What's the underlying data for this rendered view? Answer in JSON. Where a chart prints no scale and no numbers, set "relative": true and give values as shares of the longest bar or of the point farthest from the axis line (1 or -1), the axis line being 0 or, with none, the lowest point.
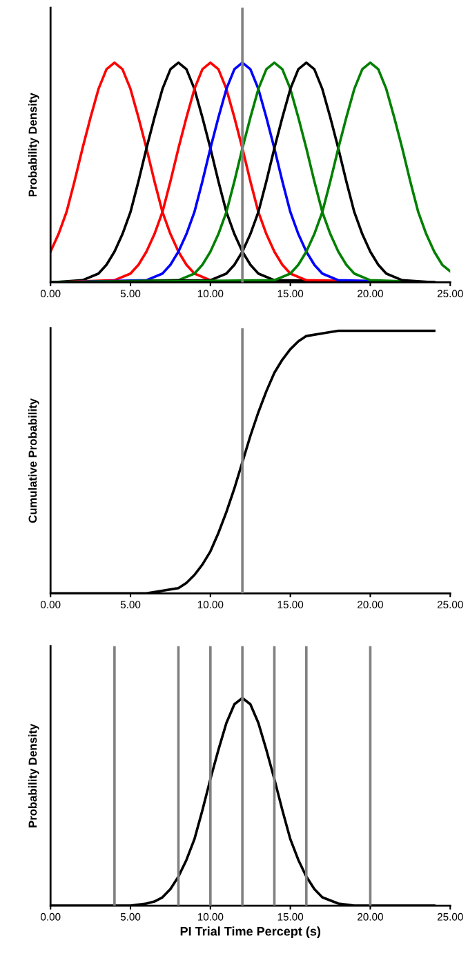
{
  "chart_data": [
    {
      "type": "line",
      "ylabel": "Probability Density",
      "relative": true,
      "tick_labels": "x",
      "grid": false,
      "legend": false,
      "marker": "none",
      "line_style": "solid",
      "xlim": [
        0,
        25
      ],
      "xticks": [
        {
          "value": 0,
          "label": "0.00"
        },
        {
          "value": 5,
          "label": "5.00"
        },
        {
          "value": 10,
          "label": "10.00"
        },
        {
          "value": 15,
          "label": "15.00"
        },
        {
          "value": 20,
          "label": "20.00"
        },
        {
          "value": 25,
          "label": "25.00"
        }
      ],
      "ref_lines": [
        {
          "axis": "x",
          "value": 12,
          "color": "#808080"
        }
      ],
      "series": [
        {
          "color": "#ff0000",
          "x": [
            0,
            0.5,
            1,
            1.5,
            2,
            2.5,
            3,
            3.5,
            4,
            4.5,
            5,
            5.5,
            6,
            6.5,
            7,
            7.5,
            8,
            8.5,
            9,
            10,
            11,
            24
          ],
          "values": [
            0.14,
            0.22,
            0.32,
            0.46,
            0.61,
            0.75,
            0.88,
            0.97,
            1,
            0.97,
            0.88,
            0.75,
            0.61,
            0.46,
            0.32,
            0.22,
            0.14,
            0.08,
            0.04,
            0.01,
            0,
            0
          ]
        },
        {
          "color": "#000000",
          "x": [
            0,
            2,
            3,
            3.5,
            4,
            4.5,
            5,
            5.5,
            6,
            6.5,
            7,
            7.5,
            8,
            8.5,
            9,
            9.5,
            10,
            10.5,
            11,
            11.5,
            12,
            12.5,
            13,
            14,
            24
          ],
          "values": [
            0,
            0.01,
            0.04,
            0.08,
            0.14,
            0.22,
            0.32,
            0.46,
            0.61,
            0.75,
            0.88,
            0.97,
            1,
            0.97,
            0.88,
            0.75,
            0.61,
            0.46,
            0.32,
            0.22,
            0.14,
            0.08,
            0.04,
            0.01,
            0
          ]
        },
        {
          "color": "#ff0000",
          "x": [
            0,
            4,
            5,
            5.5,
            6,
            6.5,
            7,
            7.5,
            8,
            8.5,
            9,
            9.5,
            10,
            10.5,
            11,
            11.5,
            12,
            12.5,
            13,
            13.5,
            14,
            14.5,
            15,
            16,
            24
          ],
          "values": [
            0,
            0.01,
            0.04,
            0.08,
            0.14,
            0.22,
            0.32,
            0.46,
            0.61,
            0.75,
            0.88,
            0.97,
            1,
            0.97,
            0.88,
            0.75,
            0.61,
            0.46,
            0.32,
            0.22,
            0.14,
            0.08,
            0.04,
            0.01,
            0
          ]
        },
        {
          "color": "#0000ff",
          "x": [
            0,
            6,
            7,
            7.5,
            8,
            8.5,
            9,
            9.5,
            10,
            10.5,
            11,
            11.5,
            12,
            12.5,
            13,
            13.5,
            14,
            14.5,
            15,
            15.5,
            16,
            16.5,
            17,
            18,
            24
          ],
          "values": [
            0,
            0.01,
            0.04,
            0.08,
            0.14,
            0.22,
            0.32,
            0.46,
            0.61,
            0.75,
            0.88,
            0.97,
            1,
            0.97,
            0.88,
            0.75,
            0.61,
            0.46,
            0.32,
            0.22,
            0.14,
            0.08,
            0.04,
            0.01,
            0
          ]
        },
        {
          "color": "#008000",
          "x": [
            0,
            8,
            9,
            9.5,
            10,
            10.5,
            11,
            11.5,
            12,
            12.5,
            13,
            13.5,
            14,
            14.5,
            15,
            15.5,
            16,
            16.5,
            17,
            17.5,
            18,
            18.5,
            19,
            20,
            24
          ],
          "values": [
            0,
            0.01,
            0.04,
            0.08,
            0.14,
            0.22,
            0.32,
            0.46,
            0.61,
            0.75,
            0.88,
            0.97,
            1,
            0.97,
            0.88,
            0.75,
            0.61,
            0.46,
            0.32,
            0.22,
            0.14,
            0.08,
            0.04,
            0.01,
            0
          ]
        },
        {
          "color": "#000000",
          "x": [
            0,
            10,
            11,
            11.5,
            12,
            12.5,
            13,
            13.5,
            14,
            14.5,
            15,
            15.5,
            16,
            16.5,
            17,
            17.5,
            18,
            18.5,
            19,
            19.5,
            20,
            20.5,
            21,
            22,
            24
          ],
          "values": [
            0,
            0.01,
            0.04,
            0.08,
            0.14,
            0.22,
            0.32,
            0.46,
            0.61,
            0.75,
            0.88,
            0.97,
            1,
            0.97,
            0.88,
            0.75,
            0.61,
            0.46,
            0.32,
            0.22,
            0.14,
            0.08,
            0.04,
            0.01,
            0
          ]
        },
        {
          "color": "#008000",
          "x": [
            0,
            14,
            15,
            15.5,
            16,
            16.5,
            17,
            17.5,
            18,
            18.5,
            19,
            19.5,
            20,
            20.5,
            21,
            21.5,
            22,
            22.5,
            23,
            23.5,
            24,
            24.5,
            25
          ],
          "values": [
            0,
            0.01,
            0.04,
            0.08,
            0.14,
            0.22,
            0.32,
            0.46,
            0.61,
            0.75,
            0.88,
            0.97,
            1,
            0.97,
            0.88,
            0.75,
            0.61,
            0.46,
            0.32,
            0.22,
            0.14,
            0.08,
            0.05
          ]
        }
      ]
    },
    {
      "type": "line",
      "ylabel": "Cumulative Probability",
      "relative": true,
      "tick_labels": "x",
      "grid": false,
      "legend": false,
      "marker": "none",
      "line_style": "solid",
      "xlim": [
        0,
        25
      ],
      "xticks": [
        {
          "value": 0,
          "label": "0.00"
        },
        {
          "value": 5,
          "label": "5.00"
        },
        {
          "value": 10,
          "label": "10.00"
        },
        {
          "value": 15,
          "label": "15.00"
        },
        {
          "value": 20,
          "label": "20.00"
        },
        {
          "value": 25,
          "label": "25.00"
        }
      ],
      "ref_lines": [
        {
          "axis": "x",
          "value": 12,
          "color": "#808080"
        }
      ],
      "series": [
        {
          "color": "#000000",
          "x": [
            0,
            4,
            6,
            7,
            8,
            8.5,
            9,
            9.5,
            10,
            10.5,
            11,
            11.5,
            12,
            12.5,
            13,
            13.5,
            14,
            14.5,
            15,
            15.5,
            16,
            17,
            18,
            20,
            24
          ],
          "values": [
            0,
            0,
            0,
            0.01,
            0.02,
            0.04,
            0.07,
            0.11,
            0.16,
            0.23,
            0.31,
            0.4,
            0.5,
            0.6,
            0.69,
            0.77,
            0.84,
            0.89,
            0.93,
            0.96,
            0.98,
            0.99,
            1,
            1,
            1
          ]
        }
      ]
    },
    {
      "type": "line",
      "ylabel": "Probability Density",
      "xlabel": "PI Trial Time Percept (s)",
      "relative": true,
      "tick_labels": "x",
      "grid": false,
      "legend": false,
      "marker": "none",
      "line_style": "solid",
      "xlim": [
        0,
        25
      ],
      "xticks": [
        {
          "value": 0,
          "label": "0.00"
        },
        {
          "value": 5,
          "label": "5.00"
        },
        {
          "value": 10,
          "label": "10.00"
        },
        {
          "value": 15,
          "label": "15.00"
        },
        {
          "value": 20,
          "label": "20.00"
        },
        {
          "value": 25,
          "label": "25.00"
        }
      ],
      "ref_lines": [
        {
          "axis": "x",
          "value": 4,
          "color": "#808080"
        },
        {
          "axis": "x",
          "value": 8,
          "color": "#808080"
        },
        {
          "axis": "x",
          "value": 10,
          "color": "#808080"
        },
        {
          "axis": "x",
          "value": 12,
          "color": "#808080"
        },
        {
          "axis": "x",
          "value": 14,
          "color": "#808080"
        },
        {
          "axis": "x",
          "value": 16,
          "color": "#808080"
        },
        {
          "axis": "x",
          "value": 20,
          "color": "#808080"
        }
      ],
      "series": [
        {
          "color": "#000000",
          "x": [
            0,
            5,
            6,
            6.5,
            7,
            7.5,
            8,
            8.5,
            9,
            9.5,
            10,
            10.5,
            11,
            11.5,
            12,
            12.5,
            13,
            13.5,
            14,
            14.5,
            15,
            15.5,
            16,
            16.5,
            17,
            18,
            19,
            24
          ],
          "values": [
            0,
            0,
            0.01,
            0.02,
            0.04,
            0.08,
            0.14,
            0.22,
            0.32,
            0.46,
            0.61,
            0.75,
            0.88,
            0.97,
            1,
            0.97,
            0.88,
            0.75,
            0.61,
            0.46,
            0.32,
            0.22,
            0.14,
            0.08,
            0.04,
            0.01,
            0,
            0
          ]
        }
      ]
    }
  ]
}
